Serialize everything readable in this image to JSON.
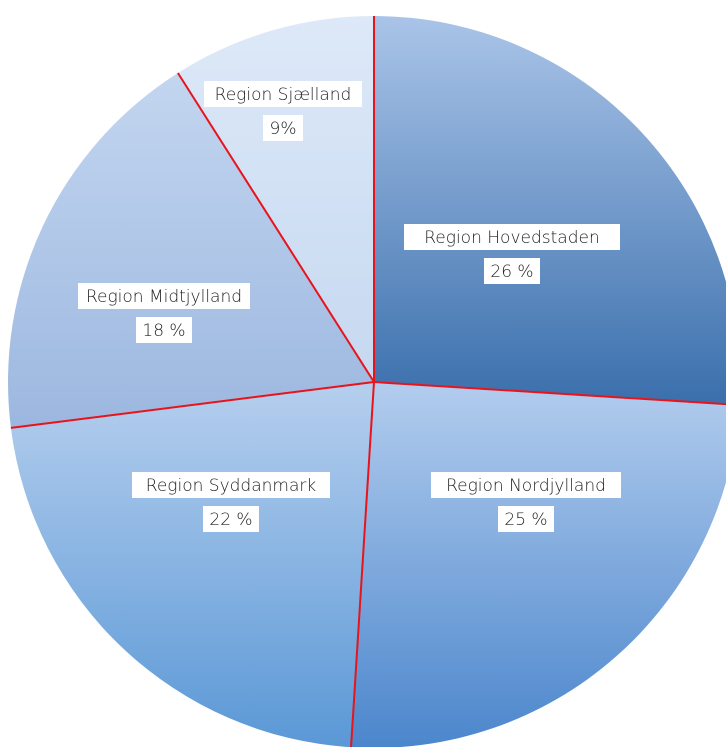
{
  "chart_data": {
    "type": "pie",
    "title": "",
    "slices": [
      {
        "label": "Region Hovedstaden",
        "value_label": "26 %",
        "value": 26
      },
      {
        "label": "Region Nordjylland",
        "value_label": "25 %",
        "value": 25
      },
      {
        "label": "Region Syddanmark",
        "value_label": "22 %",
        "value": 22
      },
      {
        "label": "Region Midtjylland",
        "value_label": "18 %",
        "value": 18
      },
      {
        "label": "Region Sjælland",
        "value_label": "9%",
        "value": 9
      }
    ],
    "start_angle_deg": 0,
    "direction": "clockwise",
    "separator_color": "#e8141c",
    "gradients": [
      {
        "from": "#aac4e8",
        "to": "#3a6fac"
      },
      {
        "from": "#b3cdee",
        "to": "#4b86cc"
      },
      {
        "from": "#b6cfee",
        "to": "#5a98d6"
      },
      {
        "from": "#c3d6f0",
        "to": "#9cb7df"
      },
      {
        "from": "#dde9f8",
        "to": "#c6d8f0"
      }
    ]
  }
}
